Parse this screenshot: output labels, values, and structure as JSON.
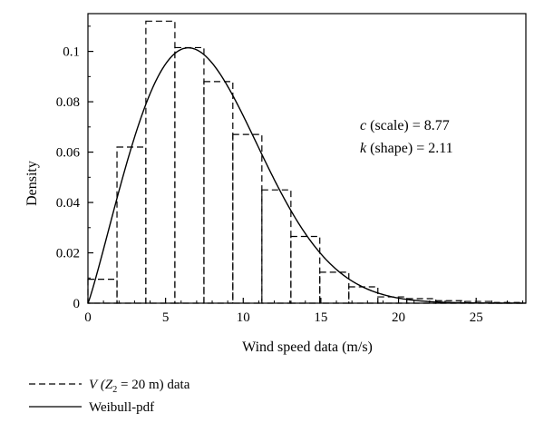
{
  "chart_data": {
    "type": "bar",
    "xlabel": "Wind speed data (m/s)",
    "ylabel": "Density",
    "xlim": [
      0,
      28.2
    ],
    "ylim": [
      0,
      0.115
    ],
    "xticks": [
      0,
      5,
      10,
      15,
      20,
      25
    ],
    "yticks": [
      0,
      0.02,
      0.04,
      0.06,
      0.08,
      0.1
    ],
    "xtick_labels": [
      "0",
      "5",
      "10",
      "15",
      "20",
      "25"
    ],
    "ytick_labels": [
      "0",
      "0.02",
      "0.04",
      "0.06",
      "0.08",
      "0.1"
    ],
    "grid": false,
    "legend_position": "below plot, left",
    "histogram": {
      "name_prefix": "V",
      "name_suffix": "(Z",
      "name_sub": "2",
      "name_rest": " = 20 m) data",
      "bin_edges": [
        0,
        1.87,
        3.73,
        5.6,
        7.47,
        9.33,
        11.2,
        13.07,
        14.93,
        16.8,
        18.67,
        20.53,
        22.4,
        24.27,
        26.13,
        28.0
      ],
      "values": [
        0.0095,
        0.062,
        0.112,
        0.1015,
        0.088,
        0.067,
        0.045,
        0.0265,
        0.0123,
        0.0065,
        0.0025,
        0.0018,
        0.001,
        0.0007,
        0.0003
      ],
      "style": "dashed"
    },
    "weibull": {
      "name": "Weibull-pdf",
      "c": 8.77,
      "k": 2.11,
      "style": "solid"
    },
    "annotations": {
      "c_symbol": "c",
      "c_text": " (scale) = 8.77",
      "k_symbol": "k",
      "k_text": " (shape) = 2.11"
    }
  }
}
